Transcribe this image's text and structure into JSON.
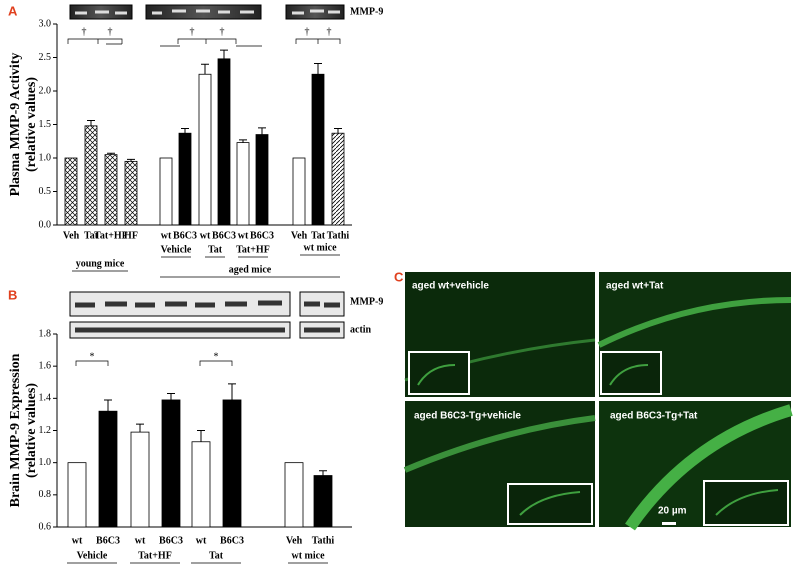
{
  "panel_labels": [
    "A",
    "B",
    "C"
  ],
  "chart_data": [
    {
      "type": "bar",
      "y_label": [
        "Plasma MMP-9 Activity",
        "(relative values)"
      ],
      "blot_labels": [
        "MMP-9"
      ],
      "categories": [
        "Veh",
        "Tat",
        "Tat+HF",
        "HF",
        "wt",
        "B6C3",
        "wt",
        "B6C3",
        "wt",
        "B6C3",
        "Veh",
        "Tat",
        "Tathi"
      ],
      "values": [
        1.0,
        1.48,
        1.05,
        0.95,
        1.0,
        1.37,
        2.25,
        2.48,
        1.23,
        1.35,
        1.0,
        2.25,
        1.37
      ],
      "errors": [
        0,
        0.08,
        0.02,
        0.03,
        0,
        0.07,
        0.15,
        0.13,
        0.04,
        0.1,
        0,
        0.16,
        0.07
      ],
      "fills": [
        "crosshatch",
        "crosshatch",
        "crosshatch",
        "crosshatch",
        "white",
        "black",
        "white",
        "black",
        "white",
        "black",
        "white",
        "black",
        "diagonal"
      ],
      "group_labels": [
        "Vehicle",
        "Tat",
        "Tat+HF",
        "wt mice",
        "young mice",
        "aged mice"
      ],
      "annotations": [
        "†",
        "†",
        "†",
        "†",
        "†",
        "†"
      ],
      "ylim": [
        0,
        3.0
      ],
      "yticks": [
        {
          "value": 0,
          "label": "0.0"
        },
        0.5,
        {
          "value": 1,
          "label": "1.0"
        },
        1.5,
        {
          "value": 2,
          "label": "2.0"
        },
        2.5,
        {
          "value": 3,
          "label": "3.0"
        }
      ]
    },
    {
      "type": "bar",
      "y_label": [
        "Brain MMP-9 Expression",
        "(relative values)"
      ],
      "blot_labels": [
        "MMP-9",
        "actin"
      ],
      "categories": [
        "wt",
        "B6C3",
        "wt",
        "B6C3",
        "wt",
        "B6C3",
        "Veh",
        "Tathi"
      ],
      "values": [
        1.0,
        1.32,
        1.19,
        1.39,
        1.13,
        1.39,
        1.0,
        0.92
      ],
      "errors": [
        0,
        0.07,
        0.05,
        0.04,
        0.07,
        0.1,
        0,
        0.03
      ],
      "fills": [
        "white",
        "black",
        "white",
        "black",
        "white",
        "black",
        "white",
        "black"
      ],
      "group_labels": [
        "Vehicle",
        "Tat+HF",
        "Tat",
        "wt mice"
      ],
      "annotations": [
        "*",
        "*"
      ],
      "ylim": [
        0.6,
        1.8
      ],
      "yticks": [
        0.6,
        0.8,
        {
          "value": 1,
          "label": "1.0"
        },
        1.2,
        1.4,
        1.6,
        1.8
      ]
    }
  ],
  "micrographs": [
    "aged wt+vehicle",
    "aged wt+Tat",
    "aged B6C3-Tg+vehicle",
    "aged B6C3-Tg+Tat"
  ],
  "scale_bar": "20 µm"
}
